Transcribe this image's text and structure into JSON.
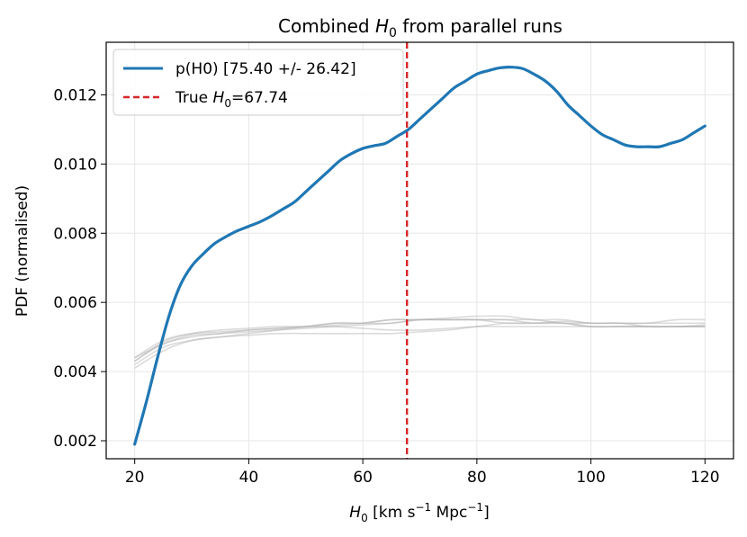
{
  "chart_data": {
    "type": "line",
    "title": "Combined H0 from parallel runs",
    "title_parts": {
      "prefix": "Combined ",
      "var": "H",
      "sub": "0",
      "suffix": " from parallel runs"
    },
    "xlabel": "H0 [km s^-1 Mpc^-1]",
    "xlabel_parts": {
      "var": "H",
      "sub": "0",
      "units_a": " [km s",
      "exp_a": "−1",
      "units_b": " Mpc",
      "exp_b": "−1",
      "close": "]"
    },
    "ylabel": "PDF (normalised)",
    "xlim": [
      15,
      125
    ],
    "ylim": [
      0.00148,
      0.01352
    ],
    "xticks": [
      20,
      40,
      60,
      80,
      100,
      120
    ],
    "xtick_labels": [
      "20",
      "40",
      "60",
      "80",
      "100",
      "120"
    ],
    "yticks": [
      0.002,
      0.004,
      0.006,
      0.008,
      0.01,
      0.012
    ],
    "ytick_labels": [
      "0.002",
      "0.004",
      "0.006",
      "0.008",
      "0.010",
      "0.012"
    ],
    "grid": true,
    "legend_position": "top-left",
    "series": [
      {
        "name": "p(H0) [75.40 +/- 26.42]",
        "color": "#1f77b4",
        "style": "solid",
        "x": [
          20,
          22,
          24,
          26,
          28,
          30,
          32,
          34,
          36,
          38,
          40,
          42,
          44,
          46,
          48,
          50,
          52,
          54,
          56,
          58,
          60,
          62,
          64,
          66,
          68,
          70,
          72,
          74,
          76,
          78,
          80,
          82,
          84,
          86,
          88,
          90,
          92,
          94,
          96,
          98,
          100,
          102,
          104,
          106,
          108,
          110,
          112,
          114,
          116,
          118,
          120
        ],
        "y": [
          0.0019,
          0.0031,
          0.0044,
          0.0056,
          0.0065,
          0.00705,
          0.0074,
          0.0077,
          0.0079,
          0.00807,
          0.0082,
          0.00833,
          0.0085,
          0.0087,
          0.0089,
          0.0092,
          0.0095,
          0.0098,
          0.0101,
          0.0103,
          0.01045,
          0.01053,
          0.0106,
          0.0108,
          0.011,
          0.0113,
          0.0116,
          0.0119,
          0.0122,
          0.0124,
          0.0126,
          0.0127,
          0.01278,
          0.0128,
          0.01276,
          0.0126,
          0.0124,
          0.0121,
          0.0117,
          0.0114,
          0.0111,
          0.01085,
          0.0107,
          0.01055,
          0.0105,
          0.0105,
          0.0105,
          0.0106,
          0.0107,
          0.0109,
          0.0111
        ]
      },
      {
        "name": "True H0=67.74",
        "label_parts": {
          "prefix": "True ",
          "var": "H",
          "sub": "0",
          "suffix": "=67.74"
        },
        "color": "#d62728",
        "style": "dashed",
        "x_value": 67.74
      }
    ],
    "background_runs": {
      "color": "#b0b0b0",
      "x": [
        20,
        25,
        30,
        35,
        40,
        45,
        50,
        55,
        60,
        65,
        70,
        75,
        80,
        85,
        90,
        95,
        100,
        105,
        110,
        115,
        120
      ],
      "runs": [
        [
          0.0044,
          0.0048,
          0.00505,
          0.0051,
          0.00515,
          0.0052,
          0.00525,
          0.0053,
          0.00535,
          0.0054,
          0.0055,
          0.0055,
          0.0055,
          0.0055,
          0.0054,
          0.0054,
          0.0053,
          0.0053,
          0.0053,
          0.0053,
          0.0053
        ],
        [
          0.0042,
          0.0047,
          0.0049,
          0.005,
          0.0051,
          0.0052,
          0.0053,
          0.0054,
          0.0054,
          0.0055,
          0.0055,
          0.0055,
          0.0055,
          0.0054,
          0.0054,
          0.0054,
          0.0053,
          0.0053,
          0.0053,
          0.0053,
          0.00535
        ],
        [
          0.0043,
          0.00485,
          0.0051,
          0.0052,
          0.00525,
          0.0053,
          0.0053,
          0.0053,
          0.00525,
          0.0052,
          0.0052,
          0.00525,
          0.0053,
          0.0054,
          0.0054,
          0.00545,
          0.0054,
          0.0054,
          0.0054,
          0.0054,
          0.0054
        ],
        [
          0.0044,
          0.0049,
          0.0051,
          0.00515,
          0.0052,
          0.00525,
          0.0053,
          0.00535,
          0.0054,
          0.0055,
          0.0055,
          0.00555,
          0.0056,
          0.0056,
          0.0055,
          0.0055,
          0.0054,
          0.0054,
          0.0053,
          0.0053,
          0.0053
        ],
        [
          0.0041,
          0.0046,
          0.0049,
          0.005,
          0.00505,
          0.0051,
          0.0051,
          0.0051,
          0.0051,
          0.0051,
          0.00515,
          0.0052,
          0.0053,
          0.0053,
          0.0053,
          0.0053,
          0.0053,
          0.0053,
          0.0053,
          0.0053,
          0.0053
        ],
        [
          0.0043,
          0.0048,
          0.005,
          0.0051,
          0.0052,
          0.00525,
          0.0053,
          0.0054,
          0.0054,
          0.0054,
          0.0055,
          0.0055,
          0.0055,
          0.0055,
          0.0055,
          0.0054,
          0.0054,
          0.0054,
          0.0054,
          0.0055,
          0.0055
        ]
      ]
    }
  }
}
